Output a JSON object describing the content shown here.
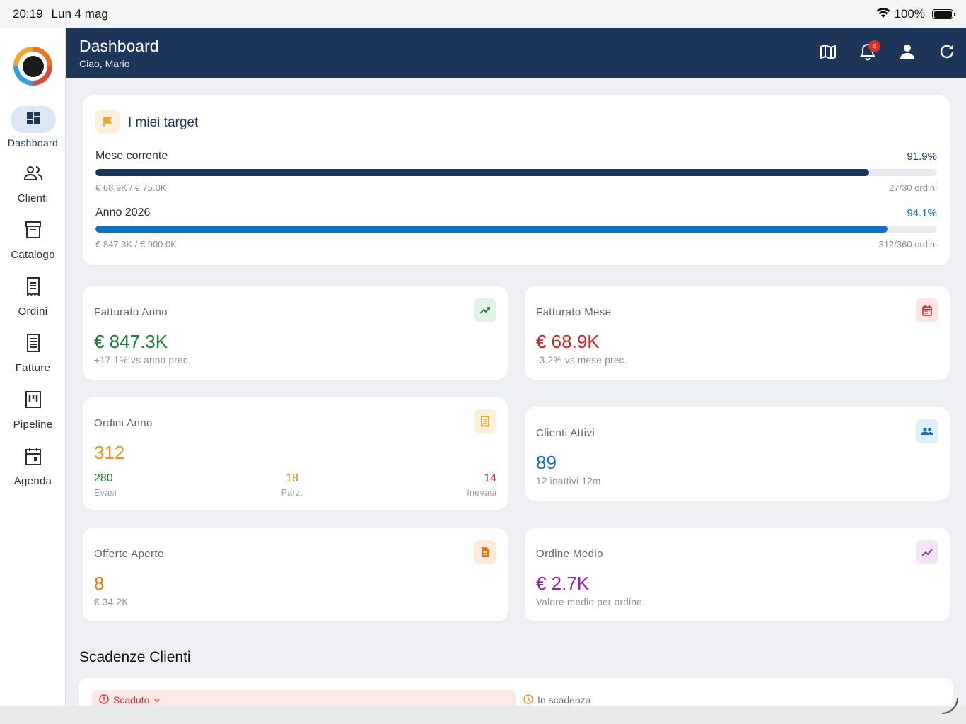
{
  "status": {
    "time": "20:19",
    "date": "Lun 4 mag",
    "battery": "100%"
  },
  "sidebar": {
    "items": [
      {
        "label": "Dashboard",
        "icon": "dashboard-icon"
      },
      {
        "label": "Clienti",
        "icon": "people-icon"
      },
      {
        "label": "Catalogo",
        "icon": "archive-icon"
      },
      {
        "label": "Ordini",
        "icon": "receipt-icon"
      },
      {
        "label": "Fatture",
        "icon": "invoice-icon"
      },
      {
        "label": "Pipeline",
        "icon": "kanban-icon"
      },
      {
        "label": "Agenda",
        "icon": "calendar-icon"
      }
    ]
  },
  "header": {
    "title": "Dashboard",
    "subtitle": "Ciao, Mario",
    "notifications": "4"
  },
  "targets": {
    "title": "I miei target",
    "month": {
      "label": "Mese corrente",
      "pct": "91.9%",
      "progress": 0.919,
      "amount": "€ 68.9K / € 75.0K",
      "orders": "27/30 ordini"
    },
    "year": {
      "label": "Anno 2026",
      "pct": "94.1%",
      "progress": 0.941,
      "amount": "€ 847.3K / € 900.0K",
      "orders": "312/360 ordini"
    }
  },
  "kpis": {
    "fatturato_anno": {
      "label": "Fatturato Anno",
      "value": "€ 847.3K",
      "sub": "+17.1% vs anno prec."
    },
    "fatturato_mese": {
      "label": "Fatturato Mese",
      "value": "€ 68.9K",
      "sub": "-3.2% vs mese prec."
    },
    "ordini_anno": {
      "label": "Ordini Anno",
      "value": "312",
      "evasi": "280",
      "evasi_label": "Evasi",
      "parz": "18",
      "parz_label": "Parz.",
      "inevasi": "14",
      "inevasi_label": "Inevasi"
    },
    "clienti_attivi": {
      "label": "Clienti Attivi",
      "value": "89",
      "sub": "12 inattivi 12m"
    },
    "offerte_aperte": {
      "label": "Offerte Aperte",
      "value": "8",
      "sub": "€ 34.2K"
    },
    "ordine_medio": {
      "label": "Ordine Medio",
      "value": "€ 2.7K",
      "sub": "Valore medio per ordine"
    }
  },
  "scadenze": {
    "title": "Scadenze Clienti",
    "tab_overdue": "Scaduto",
    "tab_due": "In scadenza"
  },
  "colors": {
    "navy": "#1c3559",
    "blue": "#1170b8",
    "green": "#1e7b34",
    "red": "#c62828",
    "orange": "#e07a10",
    "purple": "#8e24aa"
  }
}
